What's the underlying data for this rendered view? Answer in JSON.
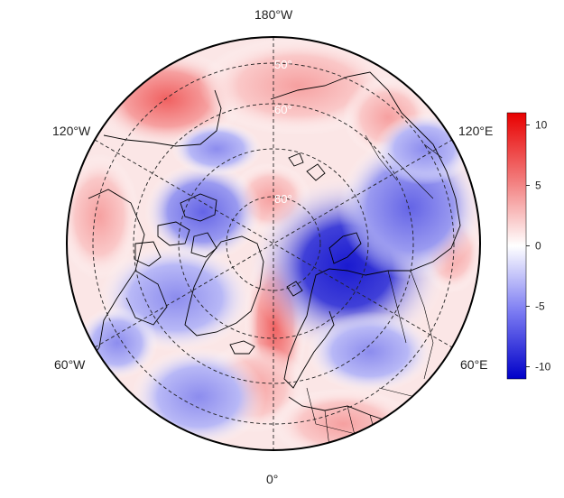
{
  "map": {
    "projection": "north polar stereographic",
    "longitude_labels": {
      "top": "180°W",
      "bottom": "0°",
      "upper_left": "120°W",
      "upper_right": "120°E",
      "lower_left": "60°W",
      "lower_right": "60°E"
    },
    "latitude_labels": [
      "50°",
      "60°",
      "80°"
    ],
    "gridlines": "dashed",
    "colors": {
      "negative": "#0000c8",
      "neutral": "#ffffff",
      "positive": "#e00000",
      "land_outline": "#000000"
    }
  },
  "colorbar": {
    "min": -11,
    "max": 11,
    "ticks": [
      "10",
      "5",
      "0",
      "-5",
      "-10"
    ],
    "tick_values": [
      10,
      5,
      0,
      -5,
      -10
    ]
  }
}
